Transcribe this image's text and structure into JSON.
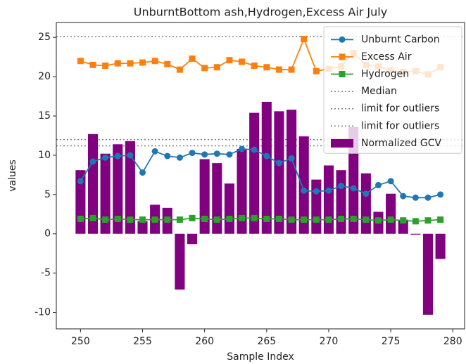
{
  "chart_data": {
    "type": "combo",
    "title": "UnburntBottom ash,Hydrogen,Excess Air July",
    "xlabel": "Sample Index",
    "ylabel": "values",
    "x": [
      250,
      251,
      252,
      253,
      254,
      255,
      256,
      257,
      258,
      259,
      260,
      261,
      262,
      263,
      264,
      265,
      266,
      267,
      268,
      269,
      270,
      271,
      272,
      273,
      274,
      275,
      276,
      277,
      278,
      279
    ],
    "series": [
      {
        "name": "Unburnt Carbon",
        "kind": "line",
        "marker": "circle",
        "color": "#1f77b4",
        "values": [
          6.7,
          9.2,
          9.7,
          9.9,
          10.0,
          7.8,
          10.5,
          9.9,
          9.7,
          10.3,
          10.1,
          10.2,
          10.1,
          10.8,
          10.7,
          9.9,
          9.0,
          9.6,
          5.5,
          5.4,
          5.5,
          6.1,
          5.8,
          5.1,
          6.2,
          6.7,
          4.8,
          4.6,
          4.6,
          5.0
        ]
      },
      {
        "name": "Excess Air",
        "kind": "line",
        "marker": "square",
        "color": "#ff7f0e",
        "values": [
          22.0,
          21.5,
          21.4,
          21.7,
          21.7,
          21.8,
          22.0,
          21.6,
          20.9,
          22.3,
          21.1,
          21.2,
          22.1,
          21.9,
          21.4,
          21.2,
          20.9,
          20.9,
          24.8,
          20.7,
          21.0,
          21.3,
          23.0,
          21.5,
          21.3,
          20.8,
          20.6,
          20.7,
          20.3,
          21.2
        ]
      },
      {
        "name": "Hydrogen",
        "kind": "line",
        "marker": "square",
        "color": "#2ca02c",
        "values": [
          1.9,
          2.0,
          1.8,
          1.9,
          1.8,
          1.8,
          1.8,
          1.8,
          1.8,
          2.0,
          1.9,
          1.8,
          1.9,
          2.0,
          2.0,
          1.9,
          1.9,
          1.8,
          1.8,
          1.8,
          1.8,
          1.9,
          1.9,
          1.8,
          1.7,
          1.8,
          1.7,
          1.6,
          1.7,
          1.8
        ]
      },
      {
        "name": "Normalized GCV",
        "kind": "bar",
        "color": "#800080",
        "values": [
          8.1,
          12.7,
          10.2,
          11.4,
          11.8,
          1.6,
          3.7,
          3.3,
          -7.1,
          -1.3,
          9.5,
          9.0,
          6.4,
          10.8,
          15.4,
          16.8,
          15.6,
          15.8,
          12.4,
          6.9,
          8.7,
          8.1,
          13.6,
          7.7,
          2.8,
          5.1,
          1.8,
          -0.1,
          -10.3,
          -3.2
        ]
      }
    ],
    "hlines": [
      {
        "name": "Median",
        "value": 25.1,
        "color": "#808080"
      },
      {
        "name": "limit for outliers",
        "value": 12.0,
        "color": "#808080"
      },
      {
        "name": "limit for outliers",
        "value": 11.2,
        "color": "#808080"
      }
    ],
    "xlim": [
      248.05,
      280.95
    ],
    "ylim": [
      -12.1,
      26.9
    ],
    "xticks": [
      250,
      255,
      260,
      265,
      270,
      275,
      280
    ],
    "yticks": [
      -10,
      -5,
      0,
      5,
      10,
      15,
      20,
      25
    ],
    "legend": "upper right"
  }
}
